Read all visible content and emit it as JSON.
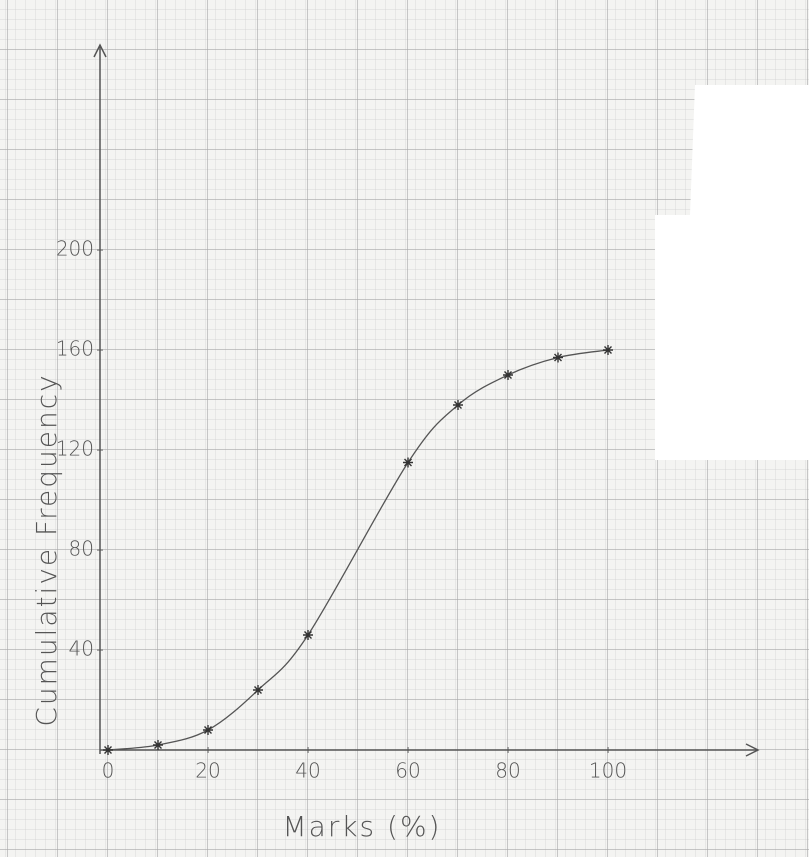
{
  "chart_data": {
    "type": "line",
    "x_label": "Marks (%)",
    "y_label": "Cumulative Frequency",
    "x": [
      0,
      10,
      20,
      30,
      40,
      60,
      70,
      80,
      90,
      100
    ],
    "values": [
      0,
      2,
      8,
      24,
      46,
      115,
      138,
      150,
      157,
      160
    ],
    "color": "#555555",
    "xlim": [
      0,
      130
    ],
    "ylim": [
      0,
      282
    ],
    "xticks": [
      0,
      20,
      40,
      60,
      80,
      100
    ],
    "yticks": [
      40,
      80,
      120,
      160,
      200
    ]
  }
}
